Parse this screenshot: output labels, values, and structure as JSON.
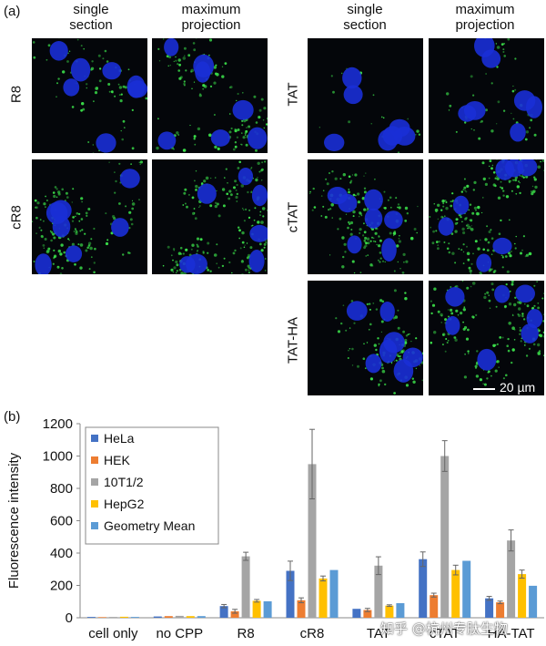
{
  "panel_a": {
    "label": "(a)",
    "left_headers": [
      "single\nsection",
      "maximum\nprojection"
    ],
    "right_headers": [
      "single\nsection",
      "maximum\nprojection"
    ],
    "left_rows": [
      "R8",
      "cR8"
    ],
    "right_rows": [
      "TAT",
      "cTAT",
      "TAT-HA"
    ],
    "scale_bar": "20 µm"
  },
  "panel_b": {
    "label": "(b)"
  },
  "colors": {
    "HeLa": "#4472c4",
    "HEK": "#ed7d31",
    "10T1/2": "#a5a5a5",
    "HepG2": "#ffc000",
    "Geometry Mean": "#5b9bd5",
    "nucleus": "#1a2fd6",
    "signal": "#3be04a"
  },
  "watermark": "知乎 @杭州专肽生物",
  "chart_data": {
    "type": "bar",
    "ylabel": "Fluorescence intensity",
    "xlabel": "",
    "ylim": [
      0,
      1200
    ],
    "yticks": [
      0,
      200,
      400,
      600,
      800,
      1000,
      1200
    ],
    "grid": false,
    "legend": "top-left",
    "categories": [
      "cell only",
      "no CPP",
      "R8",
      "cR8",
      "TAT",
      "cTAT",
      "HA-TAT"
    ],
    "series": [
      {
        "name": "HeLa",
        "values": [
          5,
          8,
          72,
          290,
          55,
          362,
          120
        ],
        "errors": [
          0,
          0,
          10,
          60,
          0,
          45,
          12
        ]
      },
      {
        "name": "HEK",
        "values": [
          4,
          10,
          40,
          108,
          48,
          140,
          95
        ],
        "errors": [
          0,
          0,
          12,
          15,
          10,
          12,
          8
        ]
      },
      {
        "name": "10T1/2",
        "values": [
          5,
          12,
          380,
          950,
          322,
          1000,
          478
        ],
        "errors": [
          0,
          0,
          25,
          215,
          55,
          95,
          65
        ]
      },
      {
        "name": "HepG2",
        "values": [
          6,
          10,
          105,
          243,
          75,
          295,
          270
        ],
        "errors": [
          0,
          0,
          8,
          15,
          5,
          30,
          25
        ]
      },
      {
        "name": "Geometry Mean",
        "values": [
          5,
          10,
          102,
          295,
          90,
          352,
          198
        ],
        "errors": [
          0,
          0,
          0,
          0,
          0,
          0,
          0
        ]
      }
    ]
  }
}
